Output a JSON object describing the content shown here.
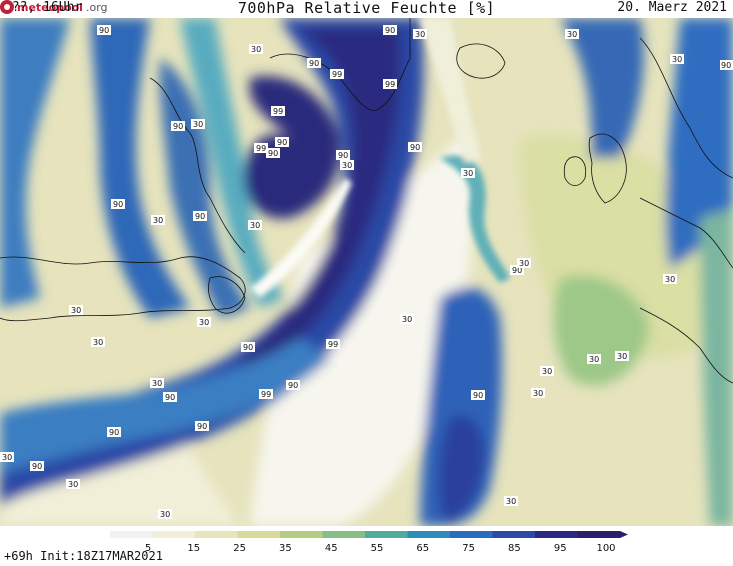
{
  "header": {
    "run_label": "???, 16Uhr",
    "title": "700hPa Relative Feuchte [%]",
    "date": "20. Maerz 2021"
  },
  "footer": {
    "forecast_info": "+69h Init:18Z17MAR2021",
    "logo_text": "meteopool",
    "logo_suffix": ".org"
  },
  "legend": {
    "ticks": [
      "5",
      "15",
      "25",
      "35",
      "45",
      "55",
      "65",
      "75",
      "85",
      "95",
      "100"
    ],
    "colors": [
      "#f2f2f2",
      "#f2efd8",
      "#e8e5bc",
      "#d6da9c",
      "#b4cd80",
      "#86bd84",
      "#52ab9a",
      "#2e8cb8",
      "#2a6bbf",
      "#2a4aa6",
      "#2a2a80",
      "#2a1f6a"
    ]
  },
  "chart_data": {
    "type": "heatmap",
    "title": "700hPa Relative Feuchte [%]",
    "legend": "bottom",
    "scale_ticks": [
      5,
      15,
      25,
      35,
      45,
      55,
      65,
      75,
      85,
      95,
      100
    ],
    "contour_labels": {
      "l90": "90",
      "l99": "99",
      "l30": "30"
    }
  }
}
